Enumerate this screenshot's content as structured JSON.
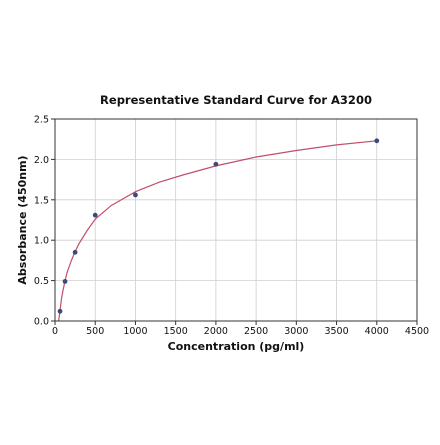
{
  "chart_data": {
    "type": "scatter",
    "title": "Representative Standard Curve for A3200",
    "xlabel": "Concentration (pg/ml)",
    "ylabel": "Absorbance (450nm)",
    "xlim": [
      0,
      4500
    ],
    "ylim": [
      0,
      2.5
    ],
    "xticks": [
      0,
      500,
      1000,
      1500,
      2000,
      2500,
      3000,
      3500,
      4000,
      4500
    ],
    "xtick_labels": [
      "0",
      "500",
      "1000",
      "1500",
      "2000",
      "2500",
      "3000",
      "3500",
      "4000",
      "4500"
    ],
    "yticks": [
      0,
      0.5,
      1.0,
      1.5,
      2.0,
      2.5
    ],
    "ytick_labels": [
      "0.0",
      "0.5",
      "1.0",
      "1.5",
      "2.0",
      "2.5"
    ],
    "grid": true,
    "legend": "none",
    "points": {
      "x": [
        62.5,
        125,
        250,
        500,
        1000,
        2000,
        4000
      ],
      "y": [
        0.12,
        0.49,
        0.85,
        1.31,
        1.56,
        1.94,
        2.23
      ]
    },
    "fitted_curve": {
      "x": [
        45,
        62.5,
        80,
        100,
        125,
        150,
        200,
        250,
        300,
        400,
        500,
        700,
        1000,
        1300,
        1600,
        2000,
        2500,
        3000,
        3500,
        4000
      ],
      "y": [
        0.0,
        0.13,
        0.27,
        0.38,
        0.5,
        0.6,
        0.74,
        0.86,
        0.96,
        1.12,
        1.26,
        1.43,
        1.6,
        1.72,
        1.81,
        1.92,
        2.03,
        2.11,
        2.18,
        2.23
      ]
    },
    "colors": {
      "points": "#3b4a7a",
      "curve": "#c0506a",
      "grid": "#cfcfcf",
      "axes": "#333333",
      "text": "#111111"
    }
  }
}
